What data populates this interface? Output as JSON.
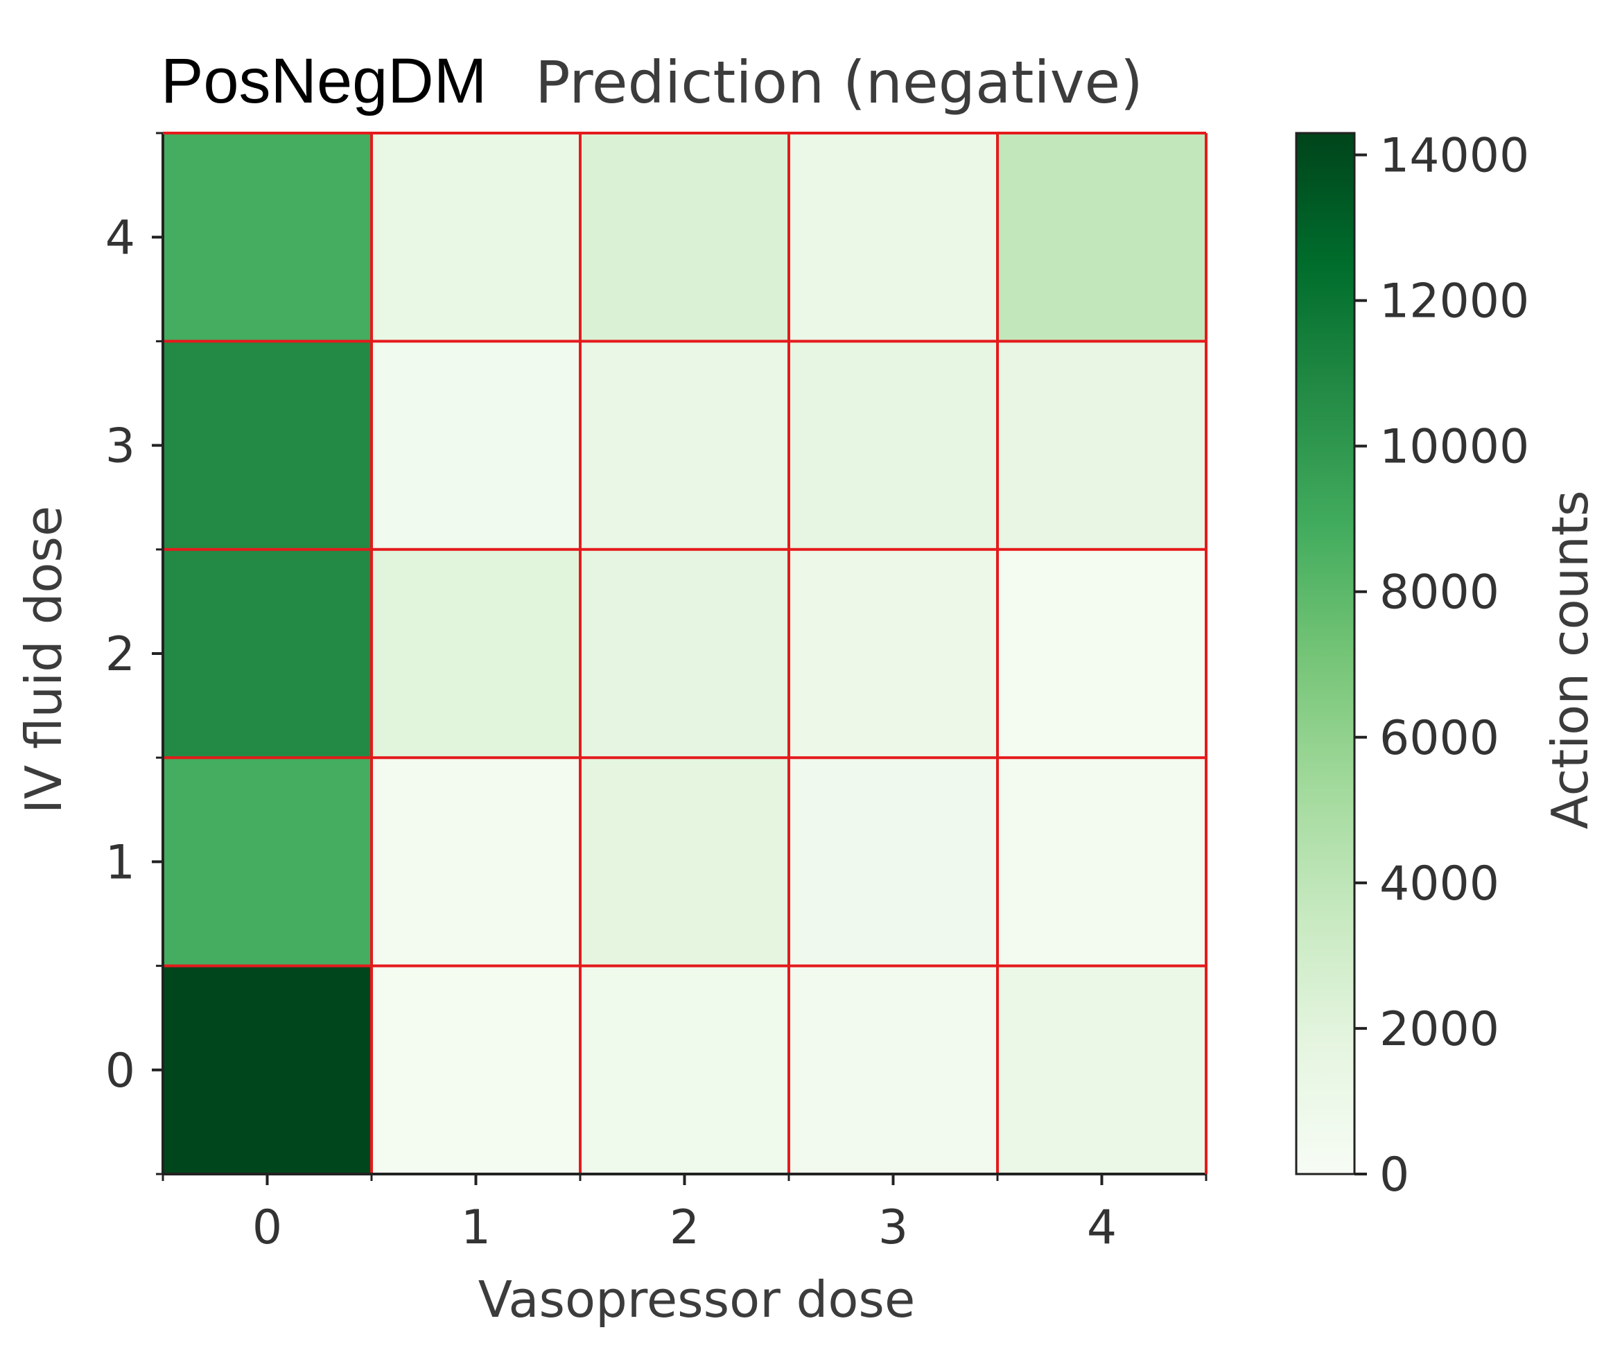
{
  "chart_data": {
    "type": "heatmap",
    "title": "PosNegDM",
    "subtitle": "Prediction (negative)",
    "xlabel": "Vasopressor dose",
    "ylabel": "IV fluid dose",
    "x_categories": [
      "0",
      "1",
      "2",
      "3",
      "4"
    ],
    "y_categories": [
      "0",
      "1",
      "2",
      "3",
      "4"
    ],
    "values": [
      [
        14200,
        300,
        800,
        500,
        1200
      ],
      [
        8800,
        400,
        1800,
        700,
        400
      ],
      [
        10800,
        2000,
        1700,
        1000,
        300
      ],
      [
        10800,
        600,
        1300,
        1600,
        1500
      ],
      [
        8800,
        1400,
        2400,
        1200,
        3800
      ]
    ],
    "colorbar": {
      "label": "Action counts",
      "ticks": [
        0,
        2000,
        4000,
        6000,
        8000,
        10000,
        12000,
        14000
      ],
      "range": [
        0,
        14300
      ],
      "colormap": "Greens"
    },
    "grid_color": "#e41a1c"
  }
}
